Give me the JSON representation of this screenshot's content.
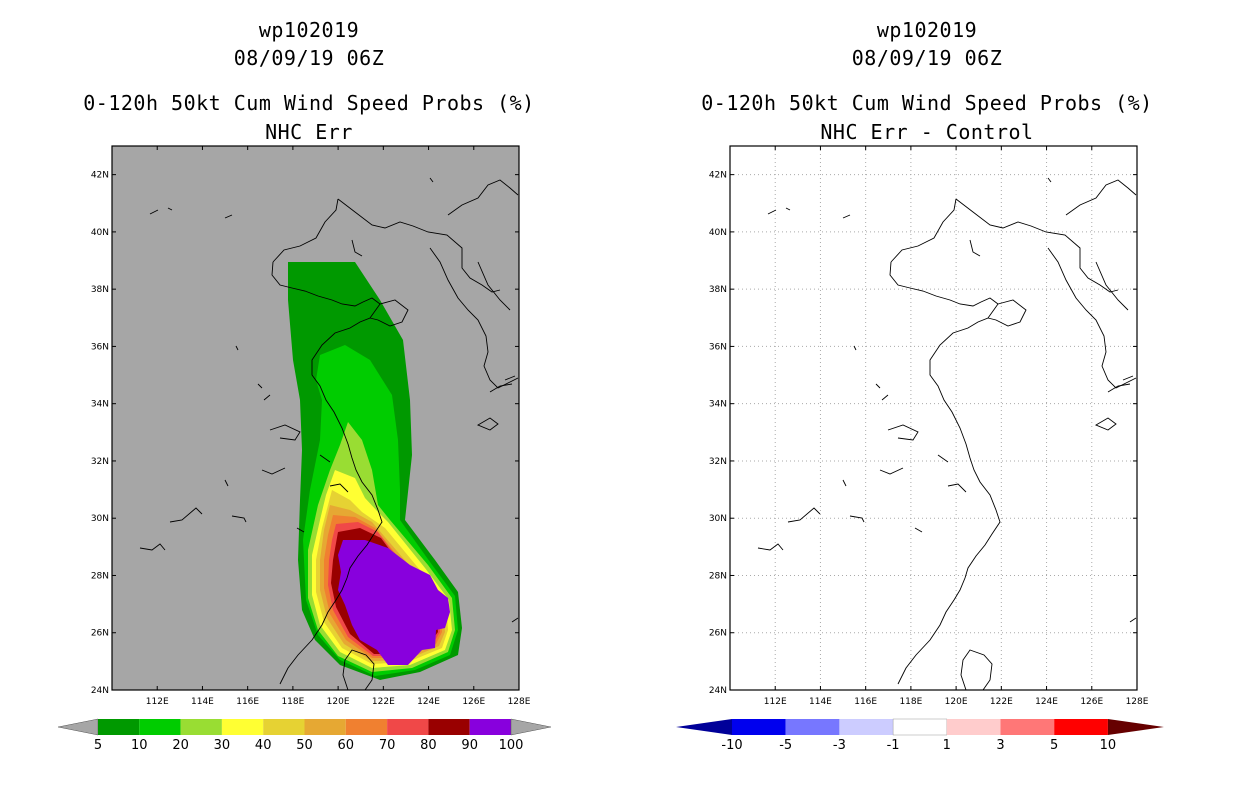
{
  "left": {
    "title_id": "wp102019",
    "title_date": "08/09/19 06Z",
    "title_product": "0-120h 50kt Cum Wind Speed Probs (%)",
    "title_model": "NHC Err",
    "background": "#a6a6a6",
    "colorbar": {
      "colors": [
        "#009900",
        "#00cc00",
        "#99dd33",
        "#ffff33",
        "#e6d233",
        "#e6a833",
        "#f08030",
        "#f04848",
        "#990000",
        "#8800dd"
      ],
      "labels": [
        "5",
        "10",
        "20",
        "30",
        "40",
        "50",
        "60",
        "70",
        "80",
        "90",
        "100"
      ],
      "end_color": "#a6a6a6"
    }
  },
  "right": {
    "title_id": "wp102019",
    "title_date": "08/09/19 06Z",
    "title_product": "0-120h 50kt Cum Wind Speed Probs (%)",
    "title_model": "NHC Err - Control",
    "background": "#ffffff",
    "colorbar": {
      "colors": [
        "#0000ee",
        "#7777ff",
        "#ccccff",
        "#ffffff",
        "#ffcccc",
        "#ff7777",
        "#ff0000"
      ],
      "labels": [
        "-10",
        "-5",
        "-3",
        "-1",
        "1",
        "3",
        "5",
        "10"
      ],
      "low_end_color": "#000099",
      "high_end_color": "#660000"
    }
  },
  "axes": {
    "lon_labels": [
      "112E",
      "114E",
      "116E",
      "118E",
      "120E",
      "122E",
      "124E",
      "126E",
      "128E"
    ],
    "lat_labels": [
      "24N",
      "26N",
      "28N",
      "30N",
      "32N",
      "34N",
      "36N",
      "38N",
      "40N",
      "42N"
    ]
  }
}
